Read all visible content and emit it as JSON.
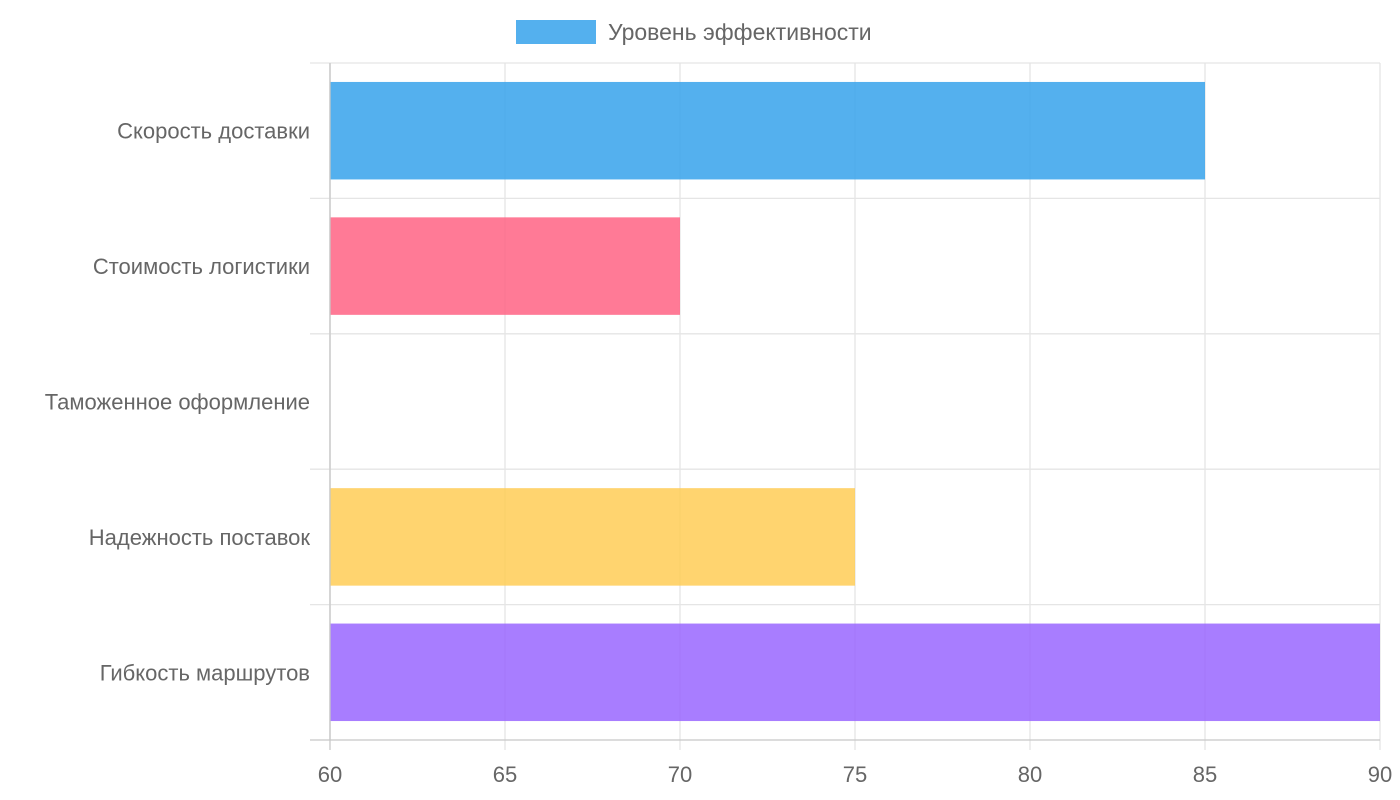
{
  "chart_data": {
    "type": "bar",
    "orientation": "horizontal",
    "categories": [
      "Скорость доставки",
      "Стоимость логистики",
      "Таможенное оформление",
      "Надежность поставок",
      "Гибкость маршрутов"
    ],
    "series": [
      {
        "name": "Уровень эффективности",
        "values": [
          85,
          70,
          60,
          75,
          90
        ]
      }
    ],
    "bar_colors": [
      "#36a2eb",
      "#ff6384",
      "#4bc0c0",
      "#ffcd56",
      "#9966ff"
    ],
    "legend_color": "#36a2eb",
    "xlim": [
      60,
      90
    ],
    "xticks": [
      "60",
      "65",
      "70",
      "75",
      "80",
      "85",
      "90"
    ],
    "grid": true,
    "legend_position": "top"
  }
}
